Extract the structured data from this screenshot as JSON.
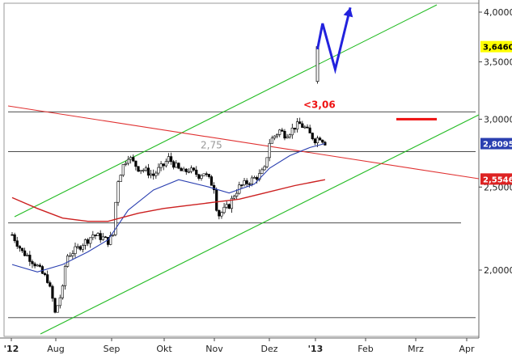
{
  "chart_data": {
    "type": "candlestick",
    "title": "",
    "xlabel": "",
    "ylabel": "",
    "ylim": [
      1.75,
      4.1
    ],
    "y_scale": "log",
    "grid": false,
    "x_ticks": [
      "'12",
      "Aug",
      "Sep",
      "Okt",
      "Nov",
      "Dez",
      "'13",
      "Feb",
      "Mrz",
      "Apr"
    ],
    "y_ticks": [
      "2,0000",
      "2,5000",
      "3,0000",
      "3,5000",
      "4,0000"
    ],
    "y_tick_values": [
      2.0,
      2.5,
      3.0,
      3.5,
      4.0
    ],
    "colors": {
      "candles": "#000000",
      "channel": "#22bb22",
      "downtrend": "#e03030",
      "sma_blue": "#2a3fb0",
      "sma_red": "#cc2020",
      "support_lines": "#333333",
      "forecast_arrow": "#2222dd",
      "target_bar": "#ee1111",
      "tag_current": "#ffff00",
      "tag_blue": "#2a3fb0",
      "tag_red": "#dd2222"
    },
    "price_tags": [
      {
        "label": "3,6460",
        "value": 3.646,
        "style": "current"
      },
      {
        "label": "2,8095",
        "value": 2.8095,
        "style": "blue"
      },
      {
        "label": "2,5546",
        "value": 2.5546,
        "style": "red"
      }
    ],
    "annotations": [
      {
        "text": "<3,06",
        "value": 3.06,
        "color": "#ee1111"
      },
      {
        "text": "2,75",
        "value": 2.75,
        "color": "#999999"
      }
    ],
    "horizontal_lines": [
      3.06,
      2.75,
      2.27,
      1.76
    ],
    "series": [
      {
        "type": "candlestick",
        "points": [
          [
            0.0,
            2.2
          ],
          [
            0.1,
            2.15
          ],
          [
            0.2,
            2.1
          ],
          [
            0.3,
            2.08
          ],
          [
            0.4,
            2.05
          ],
          [
            0.5,
            2.02
          ],
          [
            0.6,
            1.98
          ],
          [
            0.7,
            1.95
          ],
          [
            0.8,
            1.85
          ],
          [
            0.85,
            1.78
          ],
          [
            0.9,
            1.82
          ],
          [
            1.0,
            1.9
          ],
          [
            1.05,
            2.02
          ],
          [
            1.1,
            2.08
          ],
          [
            1.2,
            2.1
          ],
          [
            1.3,
            2.12
          ],
          [
            1.4,
            2.15
          ],
          [
            1.5,
            2.17
          ],
          [
            1.6,
            2.2
          ],
          [
            1.7,
            2.19
          ],
          [
            1.8,
            2.18
          ],
          [
            1.9,
            2.16
          ],
          [
            2.0,
            2.2
          ],
          [
            2.05,
            2.4
          ],
          [
            2.1,
            2.55
          ],
          [
            2.2,
            2.65
          ],
          [
            2.3,
            2.72
          ],
          [
            2.4,
            2.67
          ],
          [
            2.5,
            2.63
          ],
          [
            2.6,
            2.62
          ],
          [
            2.7,
            2.6
          ],
          [
            2.8,
            2.58
          ],
          [
            2.9,
            2.62
          ],
          [
            3.0,
            2.65
          ],
          [
            3.1,
            2.7
          ],
          [
            3.2,
            2.66
          ],
          [
            3.3,
            2.62
          ],
          [
            3.4,
            2.6
          ],
          [
            3.5,
            2.62
          ],
          [
            3.6,
            2.6
          ],
          [
            3.7,
            2.58
          ],
          [
            3.8,
            2.6
          ],
          [
            3.9,
            2.55
          ],
          [
            4.0,
            2.5
          ],
          [
            4.05,
            2.37
          ],
          [
            4.1,
            2.32
          ],
          [
            4.2,
            2.35
          ],
          [
            4.3,
            2.38
          ],
          [
            4.4,
            2.45
          ],
          [
            4.5,
            2.5
          ],
          [
            4.6,
            2.52
          ],
          [
            4.7,
            2.54
          ],
          [
            4.8,
            2.56
          ],
          [
            4.9,
            2.58
          ],
          [
            5.0,
            2.62
          ],
          [
            5.05,
            2.72
          ],
          [
            5.1,
            2.82
          ],
          [
            5.2,
            2.87
          ],
          [
            5.3,
            2.91
          ],
          [
            5.4,
            2.88
          ],
          [
            5.5,
            2.9
          ],
          [
            5.6,
            2.94
          ],
          [
            5.7,
            2.96
          ],
          [
            5.8,
            2.93
          ],
          [
            5.9,
            2.88
          ],
          [
            6.0,
            2.84
          ],
          [
            6.1,
            2.86
          ],
          [
            6.2,
            2.82
          ]
        ]
      },
      {
        "type": "line",
        "points": [
          [
            0.0,
            2.03
          ],
          [
            0.5,
            1.99
          ],
          [
            1.0,
            2.03
          ],
          [
            1.5,
            2.1
          ],
          [
            1.9,
            2.17
          ],
          [
            2.3,
            2.35
          ],
          [
            2.8,
            2.48
          ],
          [
            3.3,
            2.55
          ],
          [
            3.9,
            2.5
          ],
          [
            4.3,
            2.46
          ],
          [
            4.8,
            2.52
          ],
          [
            5.1,
            2.63
          ],
          [
            5.5,
            2.72
          ],
          [
            5.9,
            2.78
          ],
          [
            6.2,
            2.81
          ]
        ]
      },
      {
        "type": "line",
        "points": [
          [
            0.0,
            2.43
          ],
          [
            0.5,
            2.36
          ],
          [
            1.0,
            2.3
          ],
          [
            1.5,
            2.28
          ],
          [
            1.9,
            2.28
          ],
          [
            2.5,
            2.33
          ],
          [
            3.0,
            2.36
          ],
          [
            3.5,
            2.38
          ],
          [
            4.0,
            2.4
          ],
          [
            4.5,
            2.42
          ],
          [
            5.0,
            2.46
          ],
          [
            5.6,
            2.51
          ],
          [
            6.2,
            2.55
          ]
        ]
      },
      {
        "type": "line",
        "points": [
          [
            6.05,
            3.62
          ],
          [
            6.15,
            3.88
          ],
          [
            6.4,
            3.43
          ],
          [
            6.7,
            4.05
          ]
        ]
      }
    ]
  }
}
